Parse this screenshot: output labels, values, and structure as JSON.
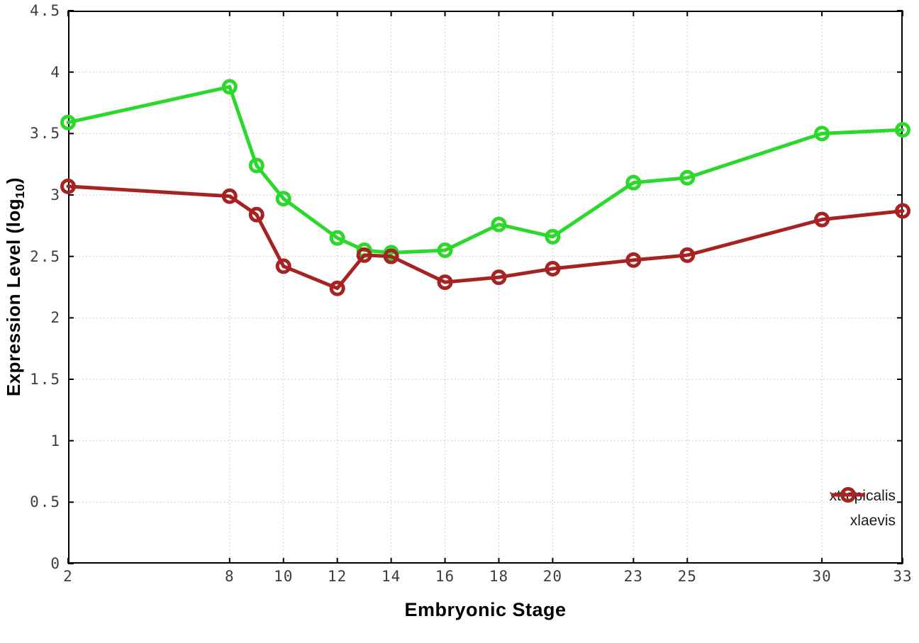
{
  "chart_data": {
    "type": "line",
    "title": "",
    "xlabel": "Embryonic Stage",
    "ylabel": "Expression Level (log10)",
    "ylabel_parts": {
      "prefix": "Expression Level (log",
      "sub": "10",
      "suffix": ")"
    },
    "x": [
      2,
      8,
      9,
      10,
      12,
      13,
      14,
      16,
      18,
      20,
      23,
      25,
      30,
      33
    ],
    "series": [
      {
        "name": "xtropicalis",
        "color": "#2bd82b",
        "marker": "open-circle",
        "values": [
          3.59,
          3.88,
          3.24,
          2.97,
          2.65,
          2.55,
          2.53,
          2.55,
          2.76,
          2.66,
          3.1,
          3.14,
          3.5,
          3.53
        ]
      },
      {
        "name": "xlaevis",
        "color": "#a52323",
        "marker": "open-circle",
        "values": [
          3.07,
          2.99,
          2.84,
          2.42,
          2.24,
          2.51,
          2.5,
          2.29,
          2.33,
          2.4,
          2.47,
          2.51,
          2.8,
          2.87
        ]
      }
    ],
    "xlim": [
      2,
      33
    ],
    "ylim": [
      0,
      4.5
    ],
    "x_ticks": [
      2,
      8,
      10,
      12,
      14,
      16,
      18,
      20,
      23,
      25,
      30,
      33
    ],
    "y_ticks": [
      0,
      0.5,
      1,
      1.5,
      2,
      2.5,
      3,
      3.5,
      4,
      4.5
    ],
    "grid": true,
    "grid_style": "dotted",
    "legend_position": "bottom-right",
    "colors": {
      "background": "#ffffff",
      "border": "#000000",
      "grid": "#bdbdbd",
      "tick_label": "#3d3d3d",
      "axis_title": "#000000"
    }
  }
}
